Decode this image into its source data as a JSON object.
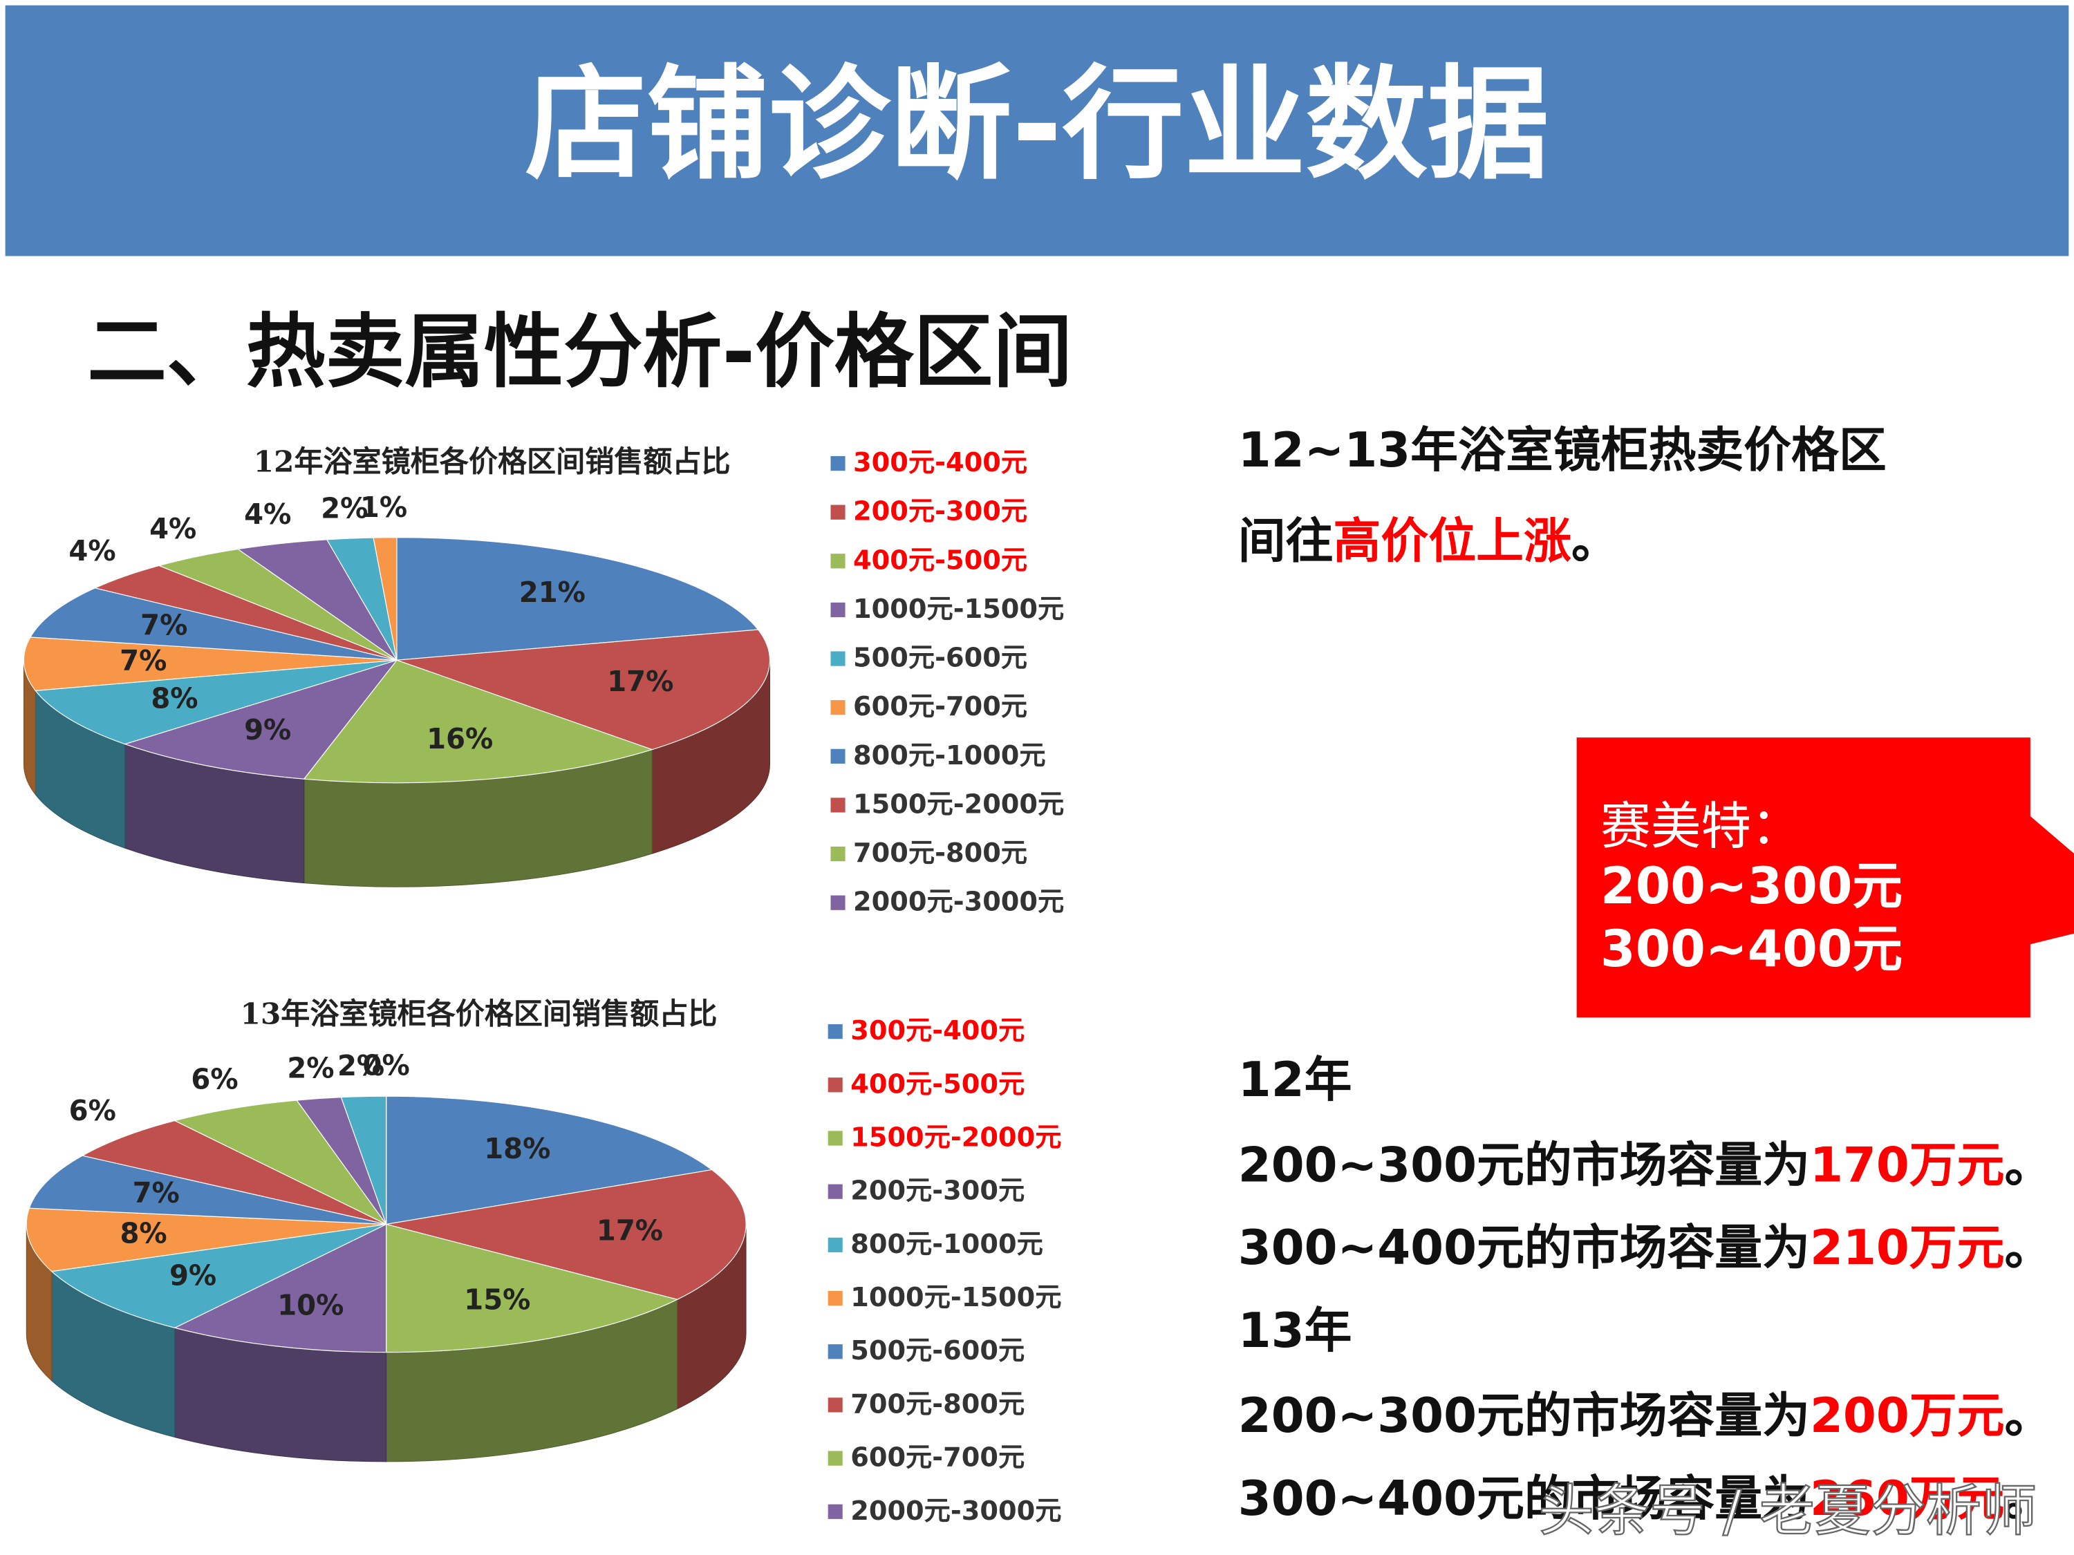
{
  "page": {
    "header_title": "店铺诊断-行业数据",
    "section_title": "二、热卖属性分析-价格区间",
    "summary": {
      "line1": "12~13年浴室镜柜热卖价格区",
      "line2_start": "间往",
      "line2_highlight": "高价位上涨",
      "line2_end": "。"
    },
    "callout": {
      "label": "赛美特：",
      "lines": [
        "200~300元",
        "300~400元"
      ]
    },
    "stats": [
      {
        "year": "12年",
        "lines": [
          {
            "text": "200~300元的市场容量为",
            "highlight": "170万元",
            "end": "。"
          },
          {
            "text": "300~400元的市场容量为",
            "highlight": "210万元",
            "end": "。"
          }
        ]
      },
      {
        "year": "13年",
        "lines": [
          {
            "text": "200~300元的市场容量为",
            "highlight": "200万元",
            "end": "。"
          },
          {
            "text": "300~400元的市场容量为",
            "highlight": "260万元",
            "end": "。"
          }
        ]
      }
    ],
    "watermark": "头条号 / 老夏分析师"
  },
  "chart_data": [
    {
      "type": "pie",
      "title": "12年浴室镜柜各价格区间销售额占比",
      "categories": [
        "300元-400元",
        "200元-300元",
        "400元-500元",
        "1000元-1500元",
        "500元-600元",
        "600元-700元",
        "800元-1000元",
        "1500元-2000元",
        "700元-800元",
        "2000元-3000元",
        null,
        null
      ],
      "values": [
        21,
        17,
        16,
        9,
        8,
        7,
        7,
        4,
        4,
        4,
        2,
        1
      ],
      "value_labels": [
        "21%",
        "17%",
        "16%",
        "9%",
        "8%",
        "7%",
        "7%",
        "4%",
        "4%",
        "4%",
        "2%",
        "1%"
      ],
      "colors": [
        "#4f81bd",
        "#c0504d",
        "#9bbb59",
        "#8064a2",
        "#4bacc6",
        "#f79646",
        "#4f81bd",
        "#c0504d",
        "#9bbb59",
        "#8064a2",
        "#4bacc6",
        "#f79646"
      ],
      "legend_text_colors": [
        "#ff0000",
        "#ff0000",
        "#ff0000",
        "#333333",
        "#333333",
        "#333333",
        "#333333",
        "#333333",
        "#333333",
        "#333333",
        null,
        null
      ]
    },
    {
      "type": "pie",
      "title": "13年浴室镜柜各价格区间销售额占比",
      "categories": [
        "300元-400元",
        "400元-500元",
        "1500元-2000元",
        "200元-300元",
        "800元-1000元",
        "1000元-1500元",
        "500元-600元",
        "700元-800元",
        "600元-700元",
        "2000元-3000元",
        null,
        null
      ],
      "values": [
        18,
        17,
        15,
        10,
        9,
        8,
        7,
        6,
        6,
        2,
        2,
        0
      ],
      "value_labels": [
        "18%",
        "17%",
        "15%",
        "10%",
        "9%",
        "8%",
        "7%",
        "6%",
        "6%",
        "2%",
        "2%",
        "0%"
      ],
      "colors": [
        "#4f81bd",
        "#c0504d",
        "#9bbb59",
        "#8064a2",
        "#4bacc6",
        "#f79646",
        "#4f81bd",
        "#c0504d",
        "#9bbb59",
        "#8064a2",
        "#4bacc6",
        "#f79646"
      ],
      "legend_text_colors": [
        "#ff0000",
        "#ff0000",
        "#ff0000",
        "#333333",
        "#333333",
        "#333333",
        "#333333",
        "#333333",
        "#333333",
        "#333333",
        null,
        null
      ]
    }
  ]
}
